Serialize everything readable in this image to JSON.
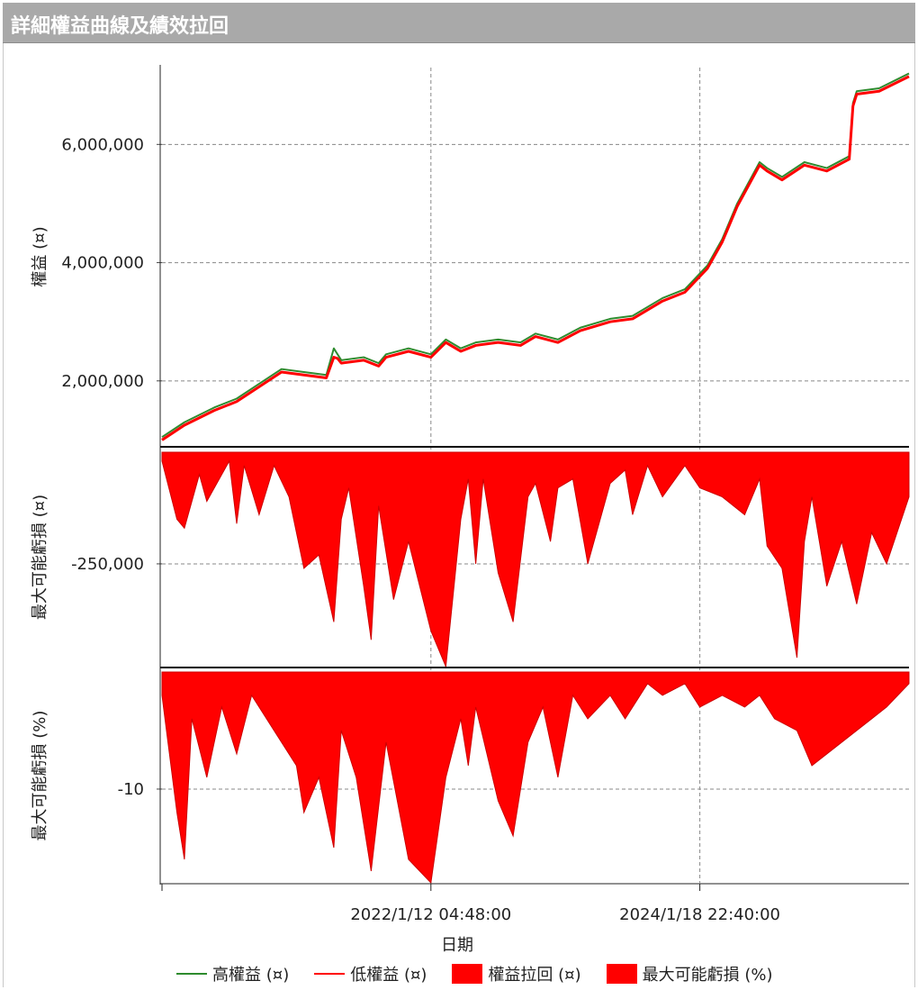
{
  "title": "詳細權益曲線及績效拉回",
  "colors": {
    "high": "#2e8b2e",
    "low": "#ff0000",
    "fill": "#ff0000",
    "grid": "#888888"
  },
  "chart_data": [
    {
      "type": "line",
      "ylabel": "權益 (¤)",
      "yticks": [
        "6,000,000",
        "4,000,000",
        "2,000,000"
      ],
      "ytick_values": [
        6000000,
        4000000,
        2000000
      ],
      "ylim": [
        900000,
        7300000
      ],
      "x": [
        0,
        0.03,
        0.07,
        0.1,
        0.13,
        0.16,
        0.19,
        0.22,
        0.23,
        0.235,
        0.24,
        0.27,
        0.29,
        0.3,
        0.33,
        0.36,
        0.38,
        0.4,
        0.42,
        0.45,
        0.48,
        0.5,
        0.53,
        0.56,
        0.6,
        0.63,
        0.67,
        0.7,
        0.73,
        0.75,
        0.77,
        0.8,
        0.81,
        0.83,
        0.86,
        0.89,
        0.92,
        0.925,
        0.93,
        0.96,
        1.0
      ],
      "series": [
        {
          "name": "高權益 (¤)",
          "values": [
            1050000,
            1300000,
            1550000,
            1700000,
            1950000,
            2200000,
            2150000,
            2100000,
            2550000,
            2450000,
            2350000,
            2400000,
            2300000,
            2450000,
            2550000,
            2450000,
            2700000,
            2550000,
            2650000,
            2700000,
            2650000,
            2800000,
            2700000,
            2900000,
            3050000,
            3100000,
            3400000,
            3550000,
            3950000,
            4400000,
            5000000,
            5700000,
            5600000,
            5450000,
            5700000,
            5600000,
            5800000,
            6700000,
            6900000,
            6950000,
            7200000
          ]
        },
        {
          "name": "低權益 (¤)",
          "values": [
            1000000,
            1250000,
            1500000,
            1650000,
            1900000,
            2150000,
            2100000,
            2050000,
            2400000,
            2380000,
            2300000,
            2350000,
            2250000,
            2400000,
            2500000,
            2400000,
            2650000,
            2500000,
            2600000,
            2650000,
            2600000,
            2750000,
            2650000,
            2850000,
            3000000,
            3050000,
            3350000,
            3500000,
            3900000,
            4350000,
            4950000,
            5650000,
            5550000,
            5400000,
            5650000,
            5550000,
            5750000,
            6650000,
            6850000,
            6900000,
            7150000
          ]
        }
      ]
    },
    {
      "type": "area",
      "ylabel": "最大可能虧損 (¤)",
      "series_name": "權益拉回 (¤)",
      "yticks": [
        "-250,000"
      ],
      "ytick_values": [
        -250000
      ],
      "ylim": [
        -480000,
        10000
      ],
      "x": [
        0,
        0.02,
        0.03,
        0.05,
        0.06,
        0.09,
        0.1,
        0.11,
        0.13,
        0.15,
        0.17,
        0.19,
        0.21,
        0.23,
        0.24,
        0.25,
        0.27,
        0.28,
        0.29,
        0.31,
        0.33,
        0.36,
        0.38,
        0.4,
        0.41,
        0.42,
        0.43,
        0.45,
        0.47,
        0.49,
        0.5,
        0.52,
        0.53,
        0.55,
        0.57,
        0.6,
        0.62,
        0.63,
        0.65,
        0.67,
        0.7,
        0.72,
        0.75,
        0.78,
        0.8,
        0.81,
        0.83,
        0.85,
        0.86,
        0.87,
        0.89,
        0.91,
        0.93,
        0.95,
        0.97,
        1.0
      ],
      "values": [
        -20000,
        -150000,
        -170000,
        -50000,
        -110000,
        -20000,
        -160000,
        -30000,
        -140000,
        -30000,
        -100000,
        -260000,
        -230000,
        -380000,
        -150000,
        -80000,
        -300000,
        -420000,
        -120000,
        -330000,
        -200000,
        -400000,
        -480000,
        -150000,
        -60000,
        -250000,
        -60000,
        -270000,
        -380000,
        -100000,
        -70000,
        -200000,
        -80000,
        -60000,
        -250000,
        -70000,
        -40000,
        -140000,
        -30000,
        -100000,
        -30000,
        -80000,
        -100000,
        -140000,
        -60000,
        -210000,
        -260000,
        -460000,
        -200000,
        -100000,
        -300000,
        -200000,
        -340000,
        -180000,
        -250000,
        -100000
      ]
    },
    {
      "type": "area",
      "ylabel": "最大可能虧損 (%)",
      "series_name": "最大可能虧損 (%)",
      "yticks": [
        "-10"
      ],
      "ytick_values": [
        -10
      ],
      "ylim": [
        -18,
        0.3
      ],
      "x": [
        0,
        0.02,
        0.03,
        0.04,
        0.06,
        0.08,
        0.1,
        0.12,
        0.15,
        0.18,
        0.19,
        0.21,
        0.23,
        0.24,
        0.26,
        0.28,
        0.3,
        0.33,
        0.36,
        0.38,
        0.4,
        0.41,
        0.42,
        0.45,
        0.47,
        0.49,
        0.51,
        0.53,
        0.55,
        0.57,
        0.6,
        0.62,
        0.65,
        0.67,
        0.7,
        0.72,
        0.75,
        0.78,
        0.8,
        0.82,
        0.85,
        0.87,
        0.89,
        0.91,
        0.93,
        0.95,
        0.97,
        1.0
      ],
      "values": [
        -2,
        -12,
        -16,
        -4,
        -9,
        -3,
        -7,
        -2,
        -5,
        -8,
        -12,
        -9,
        -15,
        -5,
        -9,
        -17,
        -6,
        -16,
        -18,
        -9,
        -4,
        -8,
        -3,
        -11,
        -14,
        -6,
        -3,
        -9,
        -2,
        -4,
        -2,
        -4,
        -1,
        -2,
        -1,
        -3,
        -2,
        -3,
        -2,
        -4,
        -5,
        -8,
        -7,
        -6,
        -5,
        -4,
        -3,
        -1
      ]
    }
  ],
  "xaxis": {
    "xlabel": "日期",
    "ticks": [
      "2022/1/12 04:48:00",
      "2024/1/18 22:40:00"
    ],
    "tick_positions": [
      0.36,
      0.72
    ]
  },
  "legend": [
    {
      "label": "高權益 (¤)",
      "kind": "line",
      "color": "#2e8b2e"
    },
    {
      "label": "低權益 (¤)",
      "kind": "line",
      "color": "#ff0000"
    },
    {
      "label": "權益拉回 (¤)",
      "kind": "box",
      "color": "#ff0000"
    },
    {
      "label": "最大可能虧損 (%)",
      "kind": "box",
      "color": "#ff0000"
    }
  ]
}
